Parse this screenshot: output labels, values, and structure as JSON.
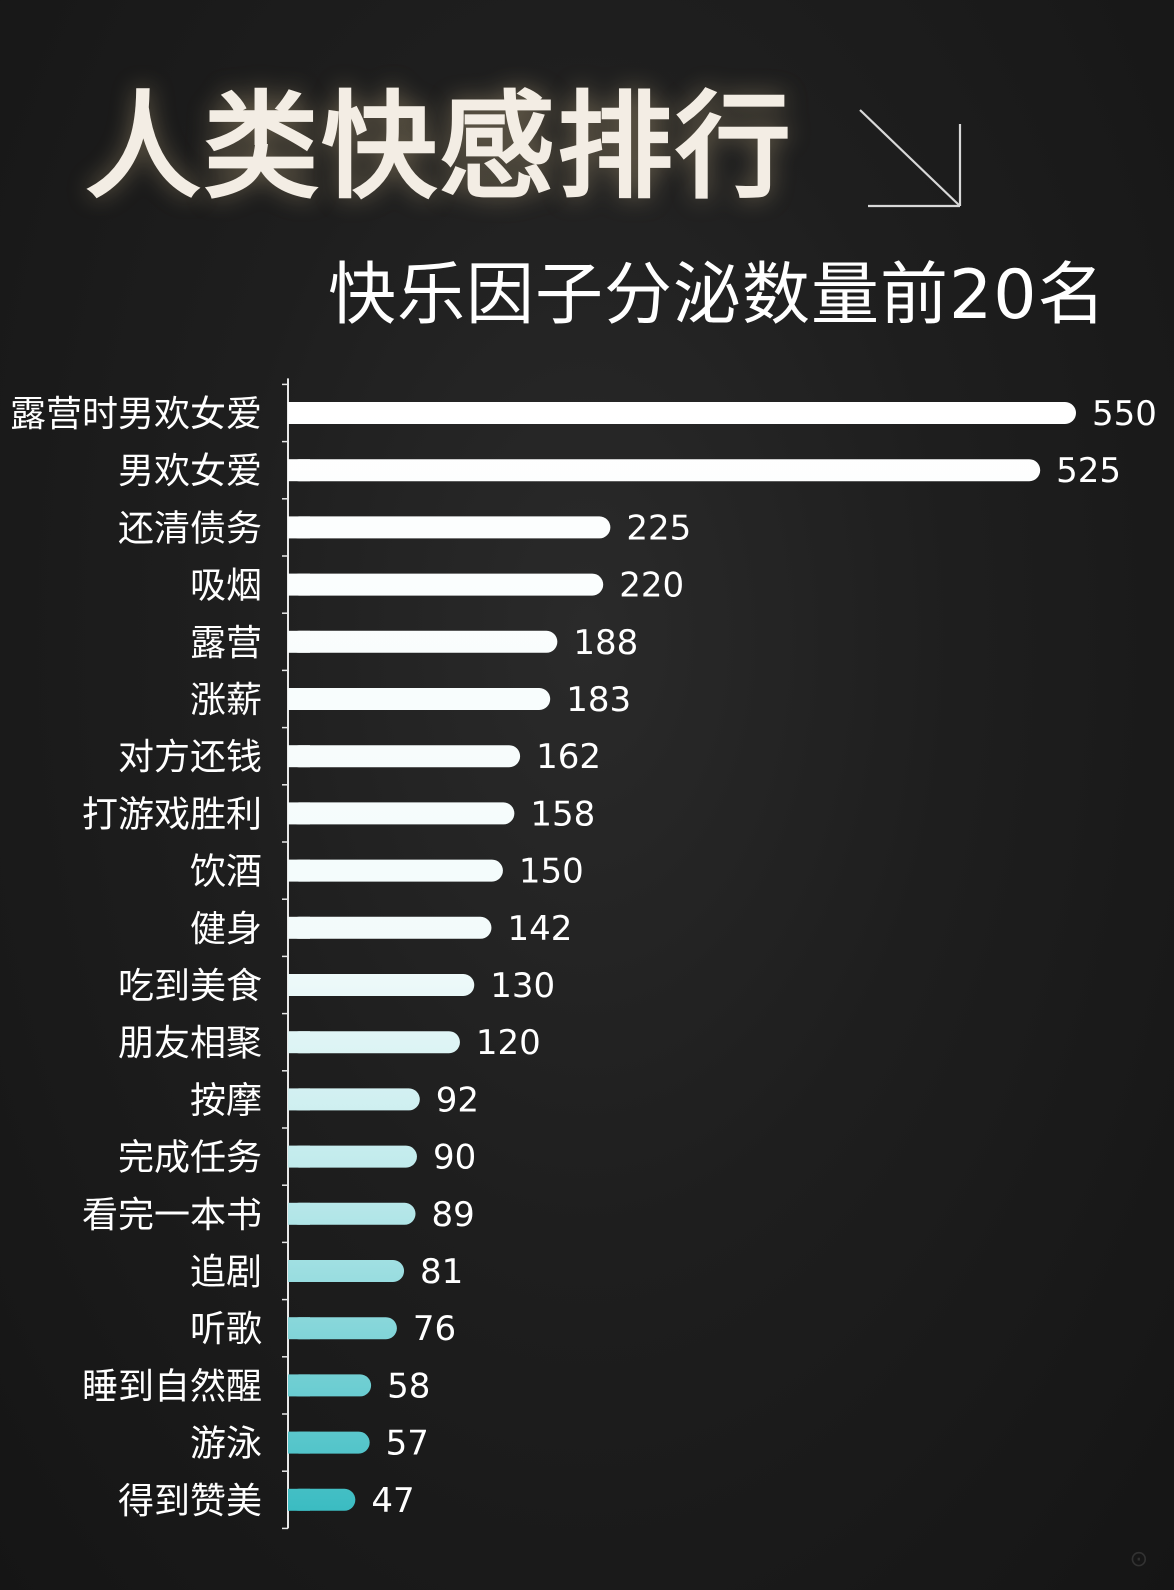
{
  "title": "人类快感排行",
  "icon": "arrow-down-right-icon",
  "chart_data": {
    "type": "bar",
    "orientation": "horizontal",
    "title": "人类快感排行",
    "subtitle": "快乐因子分泌数量前20名",
    "xlabel": "",
    "ylabel": "",
    "xlim": [
      0,
      550
    ],
    "grid": false,
    "legend": "none",
    "categories": [
      "露营时男欢女爱",
      "男欢女爱",
      "还清债务",
      "吸烟",
      "露营",
      "涨薪",
      "对方还钱",
      "打游戏胜利",
      "饮酒",
      "健身",
      "吃到美食",
      "朋友相聚",
      "按摩",
      "完成任务",
      "看完一本书",
      "追剧",
      "听歌",
      "睡到自然醒",
      "游泳",
      "得到赞美"
    ],
    "values": [
      550,
      525,
      225,
      220,
      188,
      183,
      162,
      158,
      150,
      142,
      130,
      120,
      92,
      90,
      89,
      81,
      76,
      58,
      57,
      47
    ],
    "colors": {
      "bar_top": "#ffffff",
      "bar_bottom": "#3bbcc2",
      "axis": "#e8e8e8",
      "label": "#ffffff",
      "background": "#1e1e1e"
    }
  }
}
